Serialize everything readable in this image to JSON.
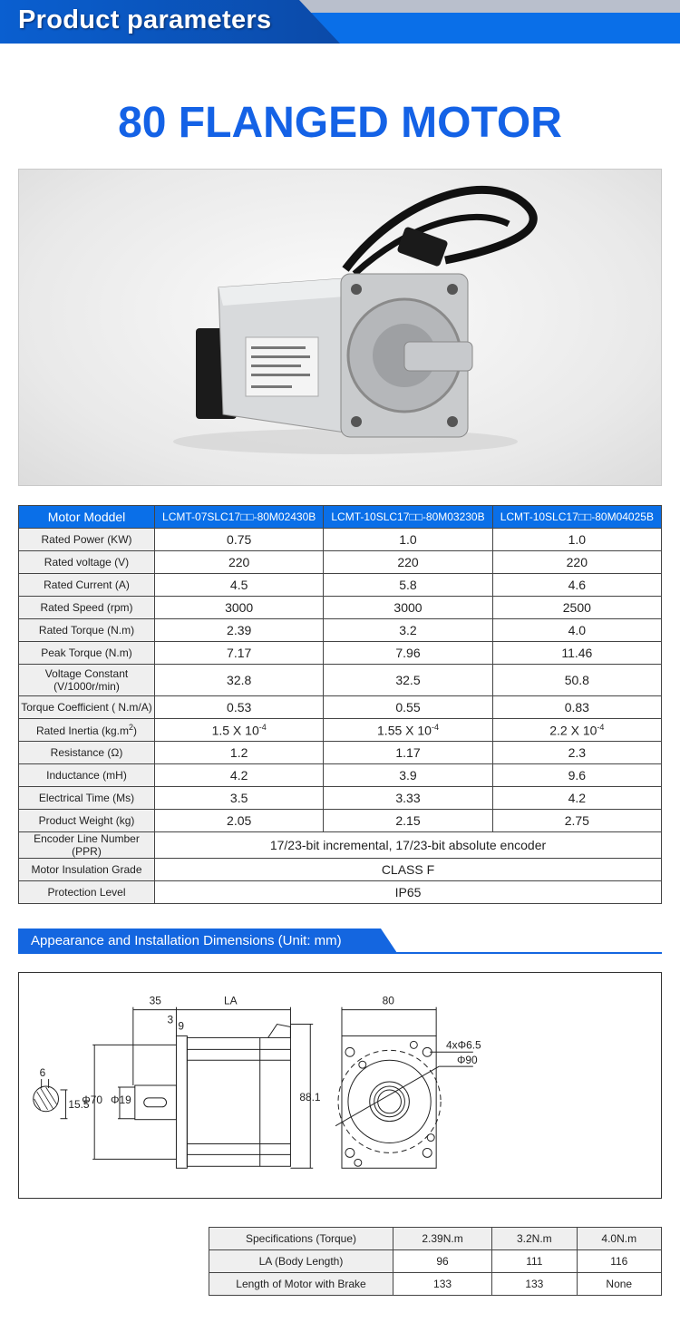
{
  "header": {
    "title": "Product parameters"
  },
  "product_title": "80 FLANGED MOTOR",
  "spec_table": {
    "header": [
      "Motor Moddel",
      "LCMT-07SLC17□□-80M02430B",
      "LCMT-10SLC17□□-80M03230B",
      "LCMT-10SLC17□□-80M04025B"
    ],
    "rows": [
      {
        "label": "Rated Power (KW)",
        "values": [
          "0.75",
          "1.0",
          "1.0"
        ]
      },
      {
        "label": "Rated voltage (V)",
        "values": [
          "220",
          "220",
          "220"
        ]
      },
      {
        "label": "Rated Current (A)",
        "values": [
          "4.5",
          "5.8",
          "4.6"
        ]
      },
      {
        "label": "Rated Speed (rpm)",
        "values": [
          "3000",
          "3000",
          "2500"
        ]
      },
      {
        "label": "Rated Torque (N.m)",
        "values": [
          "2.39",
          "3.2",
          "4.0"
        ]
      },
      {
        "label": "Peak Torque (N.m)",
        "values": [
          "7.17",
          "7.96",
          "11.46"
        ]
      },
      {
        "label": "Voltage Constant",
        "label2": "(V/1000r/min)",
        "values": [
          "32.8",
          "32.5",
          "50.8"
        ]
      },
      {
        "label": "Torque Coefficient ( N.m/A)",
        "values": [
          "0.53",
          "0.55",
          "0.83"
        ]
      },
      {
        "label": "Rated Inertia (kg.m",
        "label_sup": "2",
        "label_end": ")",
        "values": [
          "1.5 X 10",
          "1.55 X 10",
          "2.2 X 10"
        ],
        "exp": "-4"
      },
      {
        "label": "Resistance (Ω)",
        "values": [
          "1.2",
          "1.17",
          "2.3"
        ]
      },
      {
        "label": "Inductance (mH)",
        "values": [
          "4.2",
          "3.9",
          "9.6"
        ]
      },
      {
        "label": "Electrical Time (Ms)",
        "values": [
          "3.5",
          "3.33",
          "4.2"
        ]
      },
      {
        "label": "Product Weight (kg)",
        "values": [
          "2.05",
          "2.15",
          "2.75"
        ]
      },
      {
        "label": "Encoder Line Number (PPR)",
        "merged": "17/23-bit incremental, 17/23-bit absolute encoder"
      },
      {
        "label": "Motor Insulation Grade",
        "merged": "CLASS F"
      },
      {
        "label": "Protection Level",
        "merged": "IP65"
      }
    ]
  },
  "section": {
    "title": "Appearance and Installation Dimensions (Unit: mm)"
  },
  "drawing": {
    "key_width": "6",
    "key_depth": "15.5",
    "pilot": "Φ70",
    "shaft": "Φ19",
    "shaft_len": "35",
    "body_len": "LA",
    "flange_t": "3",
    "flange_w": "9",
    "height": "88.1",
    "square": "80",
    "holes": "4xΦ6.5",
    "pcd": "Φ90"
  },
  "dims_table": {
    "rows": [
      [
        "Specifications (Torque)",
        "2.39N.m",
        "3.2N.m",
        "4.0N.m"
      ],
      [
        "LA (Body Length)",
        "96",
        "111",
        "116"
      ],
      [
        "Length of Motor with Brake",
        "133",
        "133",
        "None"
      ]
    ]
  },
  "colors": {
    "brand_blue": "#0a6fe8",
    "title_blue": "#1462e6"
  }
}
